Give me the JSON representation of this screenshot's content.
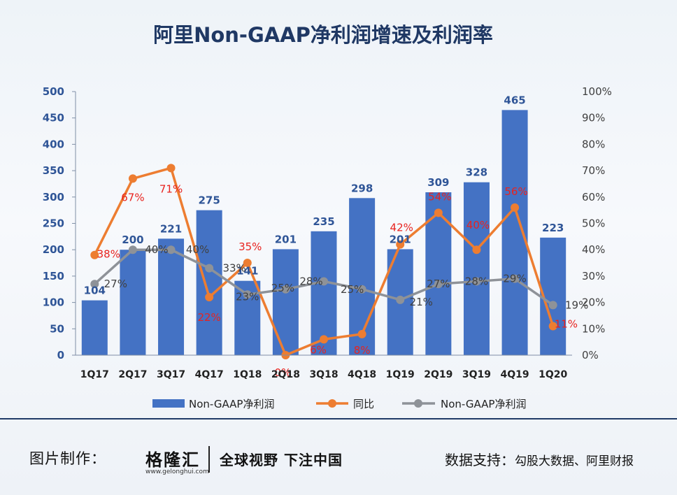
{
  "chart_data": {
    "type": "bar+line",
    "title": "阿里Non-GAAP净利润增速及利润率",
    "categories": [
      "1Q17",
      "2Q17",
      "3Q17",
      "4Q17",
      "1Q18",
      "2Q18",
      "3Q18",
      "4Q18",
      "1Q19",
      "2Q19",
      "3Q19",
      "4Q19",
      "1Q20"
    ],
    "left_axis": {
      "min": 0,
      "max": 500,
      "ticks": [
        0,
        50,
        100,
        150,
        200,
        250,
        300,
        350,
        400,
        450,
        500
      ]
    },
    "right_axis": {
      "min": 0,
      "max": 100,
      "ticks": [
        "0%",
        "10%",
        "20%",
        "30%",
        "40%",
        "50%",
        "60%",
        "70%",
        "80%",
        "90%",
        "100%"
      ]
    },
    "series": [
      {
        "name": "Non-GAAP净利润",
        "type": "bar",
        "axis": "left",
        "color": "#4472c4",
        "values": [
          104,
          200,
          221,
          275,
          141,
          201,
          235,
          298,
          201,
          309,
          328,
          465,
          223
        ],
        "labels": [
          "104",
          "200",
          "221",
          "275",
          "141",
          "201",
          "235",
          "298",
          "201",
          "309",
          "328",
          "465",
          "223"
        ]
      },
      {
        "name": "同比",
        "type": "line",
        "axis": "right",
        "color": "#ed7d31",
        "label_color": "#e8231f",
        "values": [
          38,
          67,
          71,
          22,
          35,
          0,
          6,
          8,
          42,
          54,
          40,
          56,
          11
        ],
        "labels": [
          "38%",
          "67%",
          "71%",
          "22%",
          "35%",
          "0%",
          "6%",
          "8%",
          "42%",
          "54%",
          "40%",
          "56%",
          "11%"
        ]
      },
      {
        "name": "Non-GAAP净利润",
        "type": "line",
        "axis": "right",
        "color": "#8e9298",
        "label_color": "#404040",
        "values": [
          27,
          40,
          40,
          33,
          23,
          25,
          28,
          25,
          21,
          27,
          28,
          29,
          19
        ],
        "labels": [
          "27%",
          "40%",
          "40%",
          "33%",
          "23%",
          "25%",
          "28%",
          "25%",
          "21%",
          "27%",
          "28%",
          "29%",
          "19%"
        ]
      }
    ],
    "legend": [
      "Non-GAAP净利润",
      "同比",
      "Non-GAAP净利润"
    ],
    "legend_position": "bottom"
  },
  "footer": {
    "made_by_label": "图片制作：",
    "brand_name": "格隆汇",
    "brand_url": "www.gelonghui.com",
    "slogan": "全球视野 下注中国",
    "source_label": "数据支持：",
    "source_value": "勾股大数据、阿里财报"
  },
  "colors": {
    "title": "#1f3864",
    "axis_text": "#2f5597",
    "footer_rule": "#203a66"
  }
}
